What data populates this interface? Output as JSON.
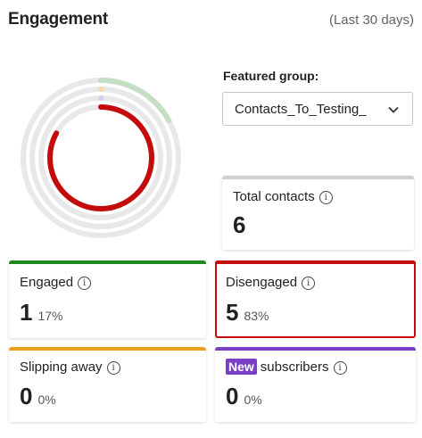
{
  "header": {
    "title": "Engagement",
    "range": "(Last 30 days)"
  },
  "featured": {
    "label": "Featured group:",
    "value": "Contacts_To_Testing_"
  },
  "donut": {
    "rings": [
      {
        "name": "engaged",
        "fraction": 0.17,
        "color": "#c5dfc4"
      },
      {
        "name": "slipping",
        "fraction": 0.0,
        "color": "#f7d9a8"
      },
      {
        "name": "new",
        "fraction": 0.0,
        "color": "#d6cdf0"
      },
      {
        "name": "disengaged",
        "fraction": 0.83,
        "color": "#c40c0c"
      }
    ],
    "track_color": "#e8e8e8"
  },
  "total": {
    "label": "Total contacts",
    "value": "6",
    "color": "#d0d0d0"
  },
  "engaged": {
    "label": "Engaged",
    "value": "1",
    "pct": "17%",
    "color": "#1f8a1f"
  },
  "disengaged": {
    "label": "Disengaged",
    "value": "5",
    "pct": "83%",
    "color": "#c40c0c"
  },
  "slipping": {
    "label": "Slipping away",
    "value": "0",
    "pct": "0%",
    "color": "#f0a020"
  },
  "new_subscribers": {
    "badge": "New",
    "label": "subscribers",
    "value": "0",
    "pct": "0%",
    "color": "#7a3ec7"
  },
  "icons": {
    "info": "info-icon",
    "chevron": "chevron-down-icon"
  }
}
